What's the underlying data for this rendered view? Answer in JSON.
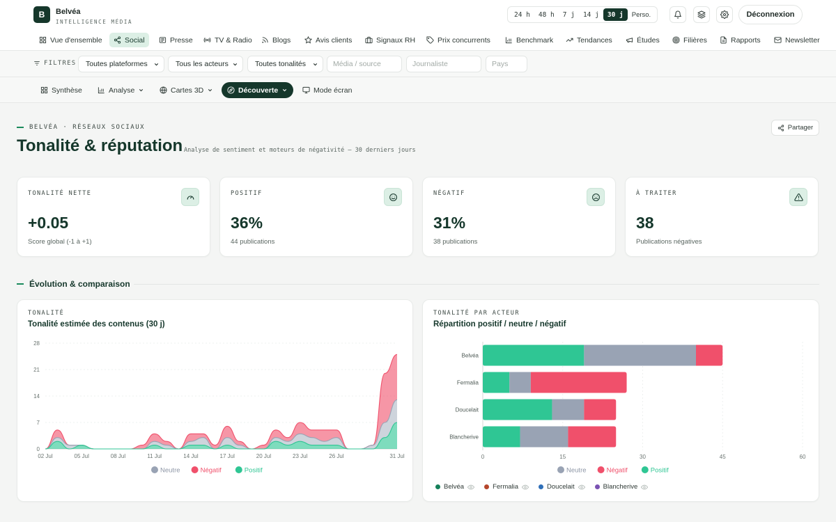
{
  "brand": {
    "logo_letter": "B",
    "name": "Belvéa",
    "subtitle": "INTELLIGENCE MÉDIA"
  },
  "time_range": {
    "options": [
      "24 h",
      "48 h",
      "7 j",
      "14 j",
      "30 j",
      "Perso."
    ],
    "selected": "30 j"
  },
  "header_icons": [
    "bell-icon",
    "layers-icon",
    "gear-icon"
  ],
  "logout_label": "Déconnexion",
  "nav": {
    "items": [
      {
        "label": "Vue d'ensemble",
        "icon": "grid-icon"
      },
      {
        "label": "Social",
        "icon": "share-icon",
        "active": true
      },
      {
        "label": "Presse",
        "icon": "newspaper-icon"
      },
      {
        "label": "TV & Radio",
        "icon": "broadcast-icon"
      },
      {
        "label": "Blogs",
        "icon": "rss-icon"
      },
      {
        "label": "Avis clients",
        "icon": "star-icon"
      },
      {
        "label": "Signaux RH",
        "icon": "briefcase-icon"
      },
      {
        "label": "Prix concurrents",
        "icon": "tag-icon"
      },
      {
        "label": "Benchmark",
        "icon": "bar-chart-icon"
      },
      {
        "label": "Tendances",
        "icon": "trending-icon"
      },
      {
        "label": "Études",
        "icon": "megaphone-icon"
      },
      {
        "label": "Filières",
        "icon": "target-icon"
      },
      {
        "label": "Rapports",
        "icon": "file-icon"
      },
      {
        "label": "Newsletter",
        "icon": "mail-icon"
      }
    ]
  },
  "filters": {
    "label": "FILTRES",
    "selects": [
      "Toutes plateformes",
      "Tous les acteurs",
      "Toutes tonalités"
    ],
    "inputs": [
      {
        "placeholder": "Média / source"
      },
      {
        "placeholder": "Journaliste"
      },
      {
        "placeholder": "Pays"
      }
    ]
  },
  "subnav": {
    "items": [
      {
        "label": "Synthèse",
        "icon": "grid-icon"
      },
      {
        "label": "Analyse",
        "icon": "bar-chart-icon",
        "dropdown": true
      },
      {
        "label": "Cartes 3D",
        "icon": "globe-icon",
        "dropdown": true
      },
      {
        "label": "Découverte",
        "icon": "compass-icon",
        "dropdown": true,
        "active": true
      },
      {
        "label": "Mode écran",
        "icon": "monitor-icon"
      }
    ]
  },
  "page": {
    "eyebrow": "BELVÉA · RÉSEAUX SOCIAUX",
    "title": "Tonalité & réputation",
    "subtitle": "Analyse de sentiment et moteurs de négativité — 30 derniers jours",
    "share_label": "Partager"
  },
  "kpis": [
    {
      "label": "TONALITÉ NETTE",
      "value": "+0.05",
      "sub": "Score global (-1 à +1)",
      "icon": "gauge-icon"
    },
    {
      "label": "POSITIF",
      "value": "36%",
      "sub": "44 publications",
      "icon": "smile-icon"
    },
    {
      "label": "NÉGATIF",
      "value": "31%",
      "sub": "38 publications",
      "icon": "frown-icon"
    },
    {
      "label": "À TRAITER",
      "value": "38",
      "sub": "Publications négatives",
      "icon": "alert-icon"
    }
  ],
  "section_title": "Évolution & comparaison",
  "charts": {
    "tone": {
      "label": "TONALITÉ",
      "title": "Tonalité estimée des contenus (30 j)"
    },
    "actors": {
      "label": "TONALITÉ PAR ACTEUR",
      "title": "Répartition positif / neutre / négatif",
      "legend": [
        {
          "name": "Belvéa",
          "color": "#15805a"
        },
        {
          "name": "Fermalia",
          "color": "#b5462c"
        },
        {
          "name": "Doucelait",
          "color": "#2f6fb8"
        },
        {
          "name": "Blancherive",
          "color": "#7a52b3"
        }
      ]
    }
  },
  "colors": {
    "positive": "#2fc694",
    "neutral": "#99a3b4",
    "negative": "#f0506b",
    "accent": "#15372b"
  },
  "chart_data": [
    {
      "type": "area",
      "stacked": true,
      "x": [
        "02 Jul",
        "03 Jul",
        "04 Jul",
        "05 Jul",
        "06 Jul",
        "07 Jul",
        "08 Jul",
        "09 Jul",
        "10 Jul",
        "11 Jul",
        "12 Jul",
        "13 Jul",
        "14 Jul",
        "15 Jul",
        "16 Jul",
        "17 Jul",
        "18 Jul",
        "19 Jul",
        "20 Jul",
        "21 Jul",
        "22 Jul",
        "23 Jul",
        "24 Jul",
        "25 Jul",
        "26 Jul",
        "27 Jul",
        "28 Jul",
        "29 Jul",
        "30 Jul",
        "31 Jul"
      ],
      "xticks": [
        "02 Jul",
        "05 Jul",
        "08 Jul",
        "11 Jul",
        "14 Jul",
        "17 Jul",
        "20 Jul",
        "23 Jul",
        "26 Jul",
        "31 Jul"
      ],
      "yticks": [
        0,
        7,
        14,
        21,
        28
      ],
      "ylim": [
        0,
        28
      ],
      "series": [
        {
          "name": "Positif",
          "color": "#2fc694",
          "values": [
            0,
            2,
            0,
            1,
            0,
            0,
            0,
            0,
            0,
            1,
            0,
            0,
            1,
            1,
            0,
            1,
            0,
            0,
            0,
            2,
            1,
            2,
            1,
            1,
            1,
            0,
            0,
            0,
            3,
            7
          ]
        },
        {
          "name": "Neutre",
          "color": "#99a3b4",
          "values": [
            0,
            1,
            1,
            0,
            0,
            0,
            0,
            0,
            0,
            1,
            1,
            0,
            1,
            2,
            0,
            2,
            1,
            0,
            0,
            1,
            1,
            2,
            2,
            1,
            2,
            0,
            0,
            1,
            4,
            6
          ]
        },
        {
          "name": "Négatif",
          "color": "#f0506b",
          "values": [
            0,
            2,
            0,
            0,
            0,
            0,
            0,
            0,
            1,
            2,
            1,
            0,
            2,
            1,
            1,
            3,
            1,
            0,
            1,
            2,
            1,
            3,
            2,
            3,
            2,
            0,
            0,
            0,
            13,
            12
          ]
        }
      ],
      "legend": [
        "Neutre",
        "Négatif",
        "Positif"
      ],
      "legend_position": "bottom"
    },
    {
      "type": "bar",
      "orientation": "horizontal",
      "stacked": true,
      "categories": [
        "Belvéa",
        "Fermalia",
        "Doucelait",
        "Blancherive"
      ],
      "series": [
        {
          "name": "Positif",
          "color": "#2fc694",
          "values": [
            19,
            5,
            13,
            7
          ]
        },
        {
          "name": "Neutre",
          "color": "#99a3b4",
          "values": [
            21,
            4,
            6,
            9
          ]
        },
        {
          "name": "Négatif",
          "color": "#f0506b",
          "values": [
            5,
            18,
            6,
            9
          ]
        }
      ],
      "xticks": [
        0,
        15,
        30,
        45,
        60
      ],
      "xlim": [
        0,
        60
      ],
      "legend": [
        "Neutre",
        "Négatif",
        "Positif"
      ],
      "legend_position": "bottom"
    }
  ]
}
